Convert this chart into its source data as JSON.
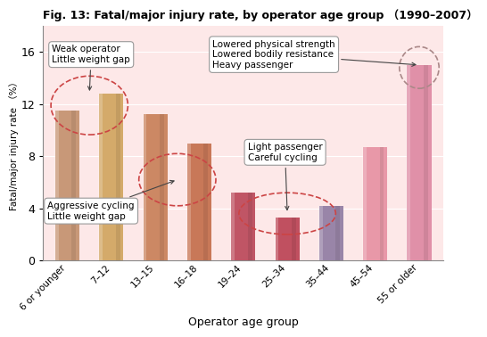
{
  "title": "Fig. 13: Fatal/major injury rate, by operator age group （1990–2007）",
  "ylabel": "Fatal/major injury rate （%）",
  "xlabel": "Operator age group",
  "categories": [
    "6 or younger",
    "7–12",
    "13–15",
    "16–18",
    "19–24",
    "25–34",
    "35–44",
    "45–54",
    "55 or older"
  ],
  "values": [
    11.5,
    12.8,
    11.2,
    9.0,
    5.2,
    3.3,
    4.2,
    8.7,
    15.0
  ],
  "bar_colors_main": [
    "#C89878",
    "#D4AA6A",
    "#CC8864",
    "#C87858",
    "#C05565",
    "#C05060",
    "#9985A8",
    "#E898A8",
    "#E090A8"
  ],
  "ylim": [
    0,
    18
  ],
  "yticks": [
    0,
    4,
    8,
    12,
    16
  ],
  "bg_color": "#FDE8E8",
  "bg_top_color": "#F9D0D8",
  "annotation1_text": "Weak operator\nLittle weight gap",
  "annotation2_text": "Aggressive cycling\nLittle weight gap",
  "annotation3_text": "Lowered physical strength\nLowered bodily resistance\nHeavy passenger",
  "annotation4_text": "Light passenger\nCareful cycling",
  "ellipse_color": "#CC4444",
  "ellipse_color2": "#AA8888"
}
